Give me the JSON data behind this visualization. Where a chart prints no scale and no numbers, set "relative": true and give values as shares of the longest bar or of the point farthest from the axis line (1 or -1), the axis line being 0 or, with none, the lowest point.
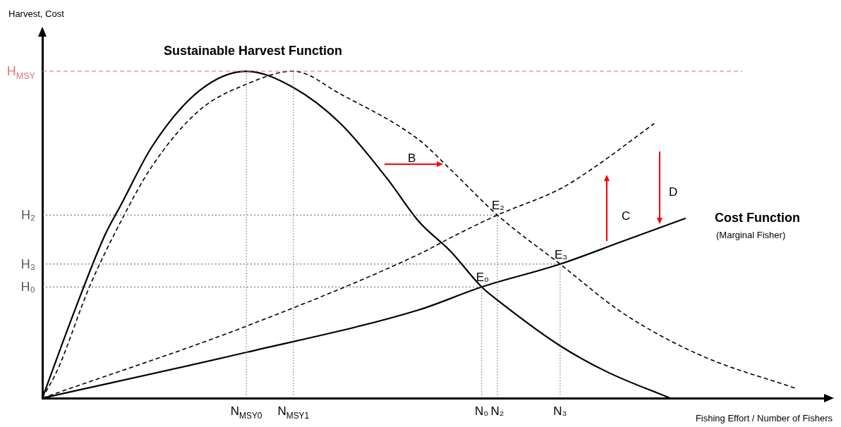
{
  "chart_data": {
    "type": "line",
    "relative": true,
    "xlabel": "Fishing Effort / Number of Fishers",
    "marker": "none",
    "categories": [
      null,
      null,
      null,
      null,
      null,
      null,
      null,
      null,
      null,
      null,
      null,
      null,
      null,
      "N$_{MSY0}$",
      null,
      null,
      "N$_{MSY1}$",
      null,
      null,
      null,
      null,
      null,
      null,
      null,
      null,
      null,
      null,
      null,
      "N₀",
      "N₂",
      null,
      null,
      null,
      "N₃",
      null,
      null,
      null,
      null,
      null,
      null,
      null,
      null,
      null,
      null,
      null,
      null,
      null,
      null,
      null,
      null,
      null
    ],
    "series": [
      {
        "color": "#000000",
        "line_style": "solid",
        "values": [
          0,
          null,
          0.26,
          null,
          0.5,
          0.59,
          null,
          0.77,
          null,
          null,
          0.94,
          null,
          null,
          1.0,
          null,
          null,
          0.95,
          null,
          null,
          0.84,
          null,
          null,
          0.67,
          null,
          0.54,
          null,
          0.45,
          null,
          0.34,
          0.3,
          null,
          null,
          null,
          0.16,
          null,
          null,
          0.08,
          null,
          null,
          null,
          0,
          null,
          null,
          null,
          null,
          null,
          null,
          null,
          null,
          null,
          null
        ]
      },
      {
        "color": "#000000",
        "line_style": "dashed",
        "values": [
          0,
          0.09,
          null,
          0.34,
          null,
          0.54,
          null,
          0.71,
          null,
          null,
          0.88,
          null,
          null,
          0.96,
          null,
          null,
          1.0,
          null,
          null,
          0.93,
          null,
          null,
          null,
          null,
          0.79,
          null,
          0.7,
          null,
          null,
          0.56,
          null,
          null,
          null,
          0.41,
          null,
          null,
          null,
          0.26,
          null,
          null,
          null,
          null,
          0.13,
          null,
          null,
          null,
          null,
          null,
          0.03,
          null,
          null
        ]
      },
      {
        "color": "#000000",
        "line_style": "dashed",
        "values": [
          0,
          null,
          null,
          null,
          null,
          null,
          null,
          null,
          null,
          null,
          null,
          null,
          null,
          0.22,
          null,
          null,
          null,
          null,
          null,
          null,
          null,
          null,
          null,
          null,
          0.44,
          null,
          0.49,
          null,
          null,
          0.56,
          null,
          null,
          null,
          0.64,
          null,
          0.7,
          null,
          null,
          null,
          0.84,
          null,
          null,
          null,
          null,
          null,
          null,
          null,
          null,
          null,
          null,
          null
        ]
      },
      {
        "color": "#000000",
        "line_style": "solid",
        "values": [
          0,
          null,
          null,
          null,
          null,
          null,
          null,
          null,
          null,
          null,
          null,
          null,
          null,
          0.14,
          null,
          null,
          null,
          null,
          null,
          null,
          null,
          null,
          null,
          null,
          0.27,
          null,
          null,
          null,
          0.34,
          null,
          null,
          null,
          null,
          0.41,
          null,
          null,
          null,
          0.48,
          null,
          null,
          null,
          0.55,
          null,
          null,
          null,
          null,
          null,
          null,
          null,
          null,
          null
        ]
      }
    ],
    "ref_lines": [
      {
        "axis": "y",
        "value": 1.0,
        "label": "H$_{MSY}$",
        "color": "#e07070",
        "line_style": "dashed"
      },
      {
        "axis": "y",
        "value": 0.56,
        "label": "H₂",
        "color": "#555555",
        "line_style": "dotted"
      },
      {
        "axis": "y",
        "value": 0.41,
        "label": "H₃",
        "color": "#555555",
        "line_style": "dotted"
      },
      {
        "axis": "y",
        "value": 0.34,
        "label": "H₀",
        "color": "#555555",
        "line_style": "dotted"
      }
    ],
    "annotations": [
      "Sustainable Harvest Function",
      "Cost Function",
      "(Marginal Fisher)",
      "B",
      "C",
      "D",
      "Harvest, Cost",
      {
        "text": "E₀",
        "x": "N₀",
        "y": 0.34
      },
      {
        "text": "E₂",
        "x": "N₂",
        "y": 0.56
      },
      {
        "text": "E₃",
        "x": "N₃",
        "y": 0.41
      }
    ]
  }
}
